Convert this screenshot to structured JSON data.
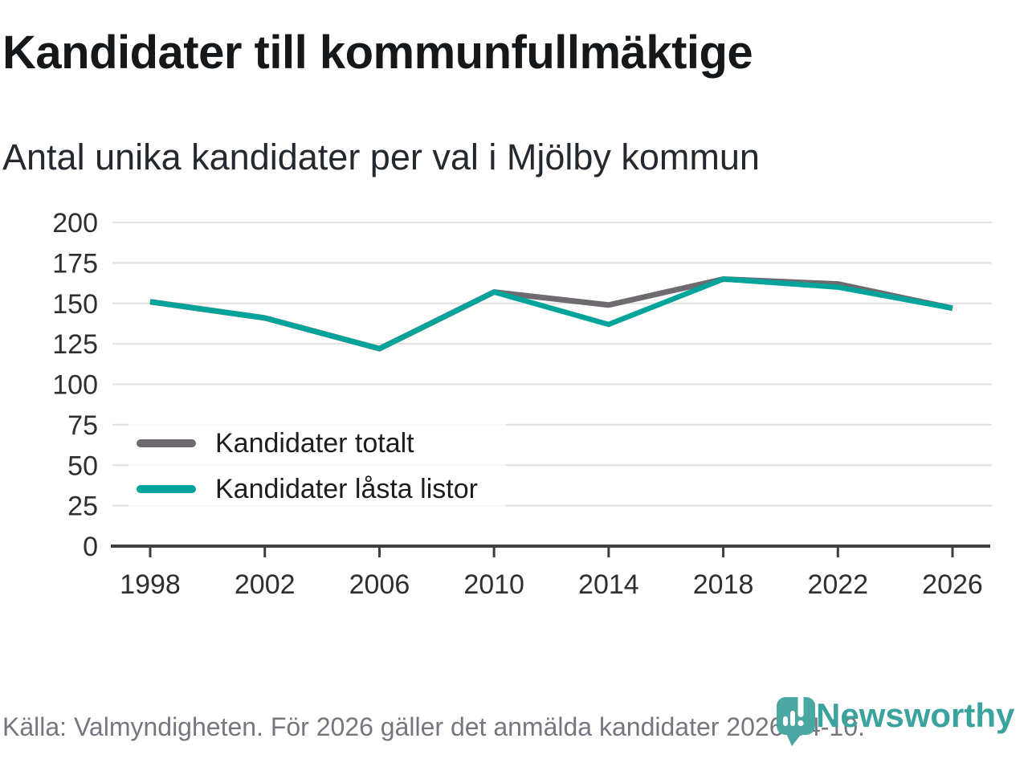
{
  "header": {
    "title": "Kandidater till kommunfullmäktige",
    "subtitle": "Antal unika kandidater per val i Mjölby kommun"
  },
  "chart_data": {
    "type": "line",
    "x": [
      "1998",
      "2002",
      "2006",
      "2010",
      "2014",
      "2018",
      "2022",
      "2026"
    ],
    "series": [
      {
        "name": "Kandidater totalt",
        "color": "#6e6a70",
        "values": [
          151,
          141,
          122,
          157,
          149,
          165,
          162,
          147
        ]
      },
      {
        "name": "Kandidater låsta listor",
        "color": "#00a49b",
        "values": [
          151,
          141,
          122,
          157,
          137,
          165,
          160,
          147
        ]
      }
    ],
    "title": "Kandidater till kommunfullmäktige",
    "subtitle": "Antal unika kandidater per val i Mjölby kommun",
    "xlabel": "",
    "ylabel": "",
    "ylim": [
      0,
      200
    ],
    "yticks": [
      0,
      25,
      50,
      75,
      100,
      125,
      150,
      175,
      200
    ],
    "grid": "horizontal",
    "legend_position": "inside-top-left"
  },
  "footer": {
    "source_text": "Källa: Valmyndigheten. För 2026 gäller det anmälda kandidater 2026-04-10.",
    "brand_name": "Newsworthy"
  },
  "colors": {
    "series_gray": "#6e6a70",
    "accent_teal": "#00a49b",
    "gridline": "#e3e3e3",
    "axis": "#3d3d42",
    "logo_bubble_teal": "#4aa7a2",
    "logo_text_teal": "#3ba39d"
  }
}
